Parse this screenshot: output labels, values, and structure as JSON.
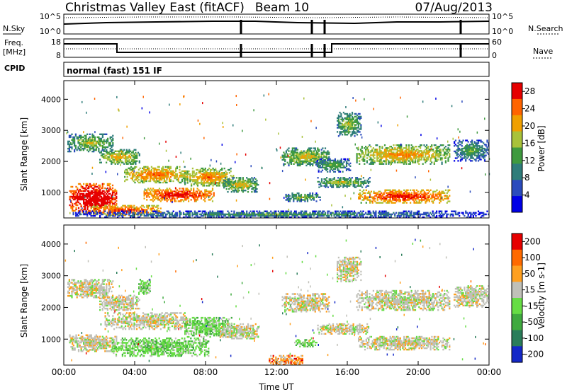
{
  "header": {
    "station": "Christmas Valley East (fitACF)",
    "beam": "Beam 10",
    "date": "07/Aug/2013"
  },
  "params": {
    "nsky_label": "N.Sky",
    "nsearch_label": "N.Search",
    "freq_label_line1": "Freq.",
    "freq_label_line2": "[MHz]",
    "nave_label": "Nave",
    "cpid_label": "CPID",
    "cpid_value": "normal (fast) 151 IF",
    "noise_ticks": [
      "10^5",
      "10^0"
    ],
    "freq_ticks": [
      "18",
      "8"
    ],
    "nave_ticks": [
      "60",
      "0"
    ]
  },
  "chart_data": [
    {
      "type": "heatmap",
      "name": "power",
      "xlabel": "Time UT",
      "ylabel": "Slant Range [km]",
      "xlim": [
        0,
        24
      ],
      "ylim": [
        180,
        4600
      ],
      "x_ticks": [
        "00:00",
        "04:00",
        "08:00",
        "12:00",
        "16:00",
        "20:00",
        "00:00"
      ],
      "y_ticks": [
        1000,
        2000,
        3000,
        4000
      ],
      "colorbar": {
        "label": "Power [dB]",
        "ticks": [
          "4",
          "8",
          "12",
          "16",
          "20",
          "24",
          "28"
        ],
        "range": [
          0,
          30
        ],
        "colors": [
          "#0000e6",
          "#2a4bbd",
          "#2f7d7a",
          "#3f9a3f",
          "#a9c23a",
          "#f0a000",
          "#ff6400",
          "#e60000"
        ]
      },
      "regions": [
        {
          "t0": 0.3,
          "t1": 3.0,
          "r0": 300,
          "r1": 1300,
          "level": 26
        },
        {
          "t0": 1.5,
          "t1": 5.5,
          "r0": 250,
          "r1": 600,
          "level": 20
        },
        {
          "t0": 0.2,
          "t1": 2.8,
          "r0": 2300,
          "r1": 2900,
          "level": 10
        },
        {
          "t0": 2.0,
          "t1": 4.3,
          "r0": 1900,
          "r1": 2400,
          "level": 13
        },
        {
          "t0": 3.4,
          "t1": 7.0,
          "r0": 1300,
          "r1": 1850,
          "level": 17
        },
        {
          "t0": 4.5,
          "t1": 8.5,
          "r0": 700,
          "r1": 1150,
          "level": 22
        },
        {
          "t0": 6.8,
          "t1": 9.6,
          "r0": 1200,
          "r1": 1800,
          "level": 16
        },
        {
          "t0": 9.0,
          "t1": 11.0,
          "r0": 1000,
          "r1": 1500,
          "level": 12
        },
        {
          "t0": 12.3,
          "t1": 15.0,
          "r0": 1850,
          "r1": 2450,
          "level": 12
        },
        {
          "t0": 14.2,
          "t1": 16.2,
          "r0": 1650,
          "r1": 2100,
          "level": 8
        },
        {
          "t0": 14.3,
          "t1": 17.3,
          "r0": 1150,
          "r1": 1500,
          "level": 10
        },
        {
          "t0": 16.6,
          "t1": 21.8,
          "r0": 650,
          "r1": 1100,
          "level": 21
        },
        {
          "t0": 16.5,
          "t1": 21.8,
          "r0": 1900,
          "r1": 2550,
          "level": 15
        },
        {
          "t0": 15.4,
          "t1": 16.8,
          "r0": 2800,
          "r1": 3600,
          "level": 10
        },
        {
          "t0": 22.0,
          "t1": 24.0,
          "r0": 2000,
          "r1": 2700,
          "level": 7
        },
        {
          "t0": 12.5,
          "t1": 14.5,
          "r0": 700,
          "r1": 1000,
          "level": 9
        },
        {
          "t0": 0.5,
          "t1": 24.0,
          "r0": 180,
          "r1": 420,
          "level": 5
        }
      ]
    },
    {
      "type": "heatmap",
      "name": "velocity",
      "xlabel": "Time UT",
      "ylabel": "Slant Range [km]",
      "xlim": [
        0,
        24
      ],
      "ylim": [
        180,
        4600
      ],
      "x_ticks": [
        "00:00",
        "04:00",
        "08:00",
        "12:00",
        "16:00",
        "20:00",
        "00:00"
      ],
      "y_ticks": [
        1000,
        2000,
        3000,
        4000
      ],
      "colorbar": {
        "label": "Velocity [m s-1]",
        "ticks": [
          "200",
          "100",
          "50",
          "15",
          "-15",
          "-50",
          "-100",
          "-200"
        ],
        "colors": [
          "#1428c8",
          "#2a7d5a",
          "#3faa3f",
          "#66dd44",
          "#c0c0b8",
          "#ffa020",
          "#ff6a00",
          "#e60000"
        ]
      },
      "regions": [
        {
          "t0": 0.3,
          "t1": 3.0,
          "r0": 600,
          "r1": 1150,
          "level": "gray"
        },
        {
          "t0": 0.2,
          "t1": 2.8,
          "r0": 2300,
          "r1": 2900,
          "level": "gray"
        },
        {
          "t0": 2.0,
          "t1": 4.3,
          "r0": 1900,
          "r1": 2400,
          "level": "gray"
        },
        {
          "t0": 2.3,
          "t1": 7.0,
          "r0": 1300,
          "r1": 1850,
          "level": "gray"
        },
        {
          "t0": 2.7,
          "t1": 8.2,
          "r0": 450,
          "r1": 1050,
          "level": "green"
        },
        {
          "t0": 6.8,
          "t1": 9.5,
          "r0": 1050,
          "r1": 1700,
          "level": "green"
        },
        {
          "t0": 4.2,
          "t1": 4.9,
          "r0": 2400,
          "r1": 2900,
          "level": "green"
        },
        {
          "t0": 8.8,
          "t1": 11.0,
          "r0": 1000,
          "r1": 1500,
          "level": "gray"
        },
        {
          "t0": 11.5,
          "t1": 13.5,
          "r0": 180,
          "r1": 500,
          "level": "orange"
        },
        {
          "t0": 12.3,
          "t1": 15.0,
          "r0": 1850,
          "r1": 2450,
          "level": "gray"
        },
        {
          "t0": 13.0,
          "t1": 14.3,
          "r0": 750,
          "r1": 1000,
          "level": "green"
        },
        {
          "t0": 14.3,
          "t1": 17.3,
          "r0": 1150,
          "r1": 1500,
          "level": "gray"
        },
        {
          "t0": 16.6,
          "t1": 21.8,
          "r0": 650,
          "r1": 1100,
          "level": "gray"
        },
        {
          "t0": 16.5,
          "t1": 21.8,
          "r0": 1900,
          "r1": 2550,
          "level": "gray"
        },
        {
          "t0": 15.4,
          "t1": 16.8,
          "r0": 2800,
          "r1": 3600,
          "level": "gray"
        },
        {
          "t0": 22.0,
          "t1": 24.0,
          "r0": 2000,
          "r1": 2700,
          "level": "gray"
        }
      ]
    }
  ]
}
